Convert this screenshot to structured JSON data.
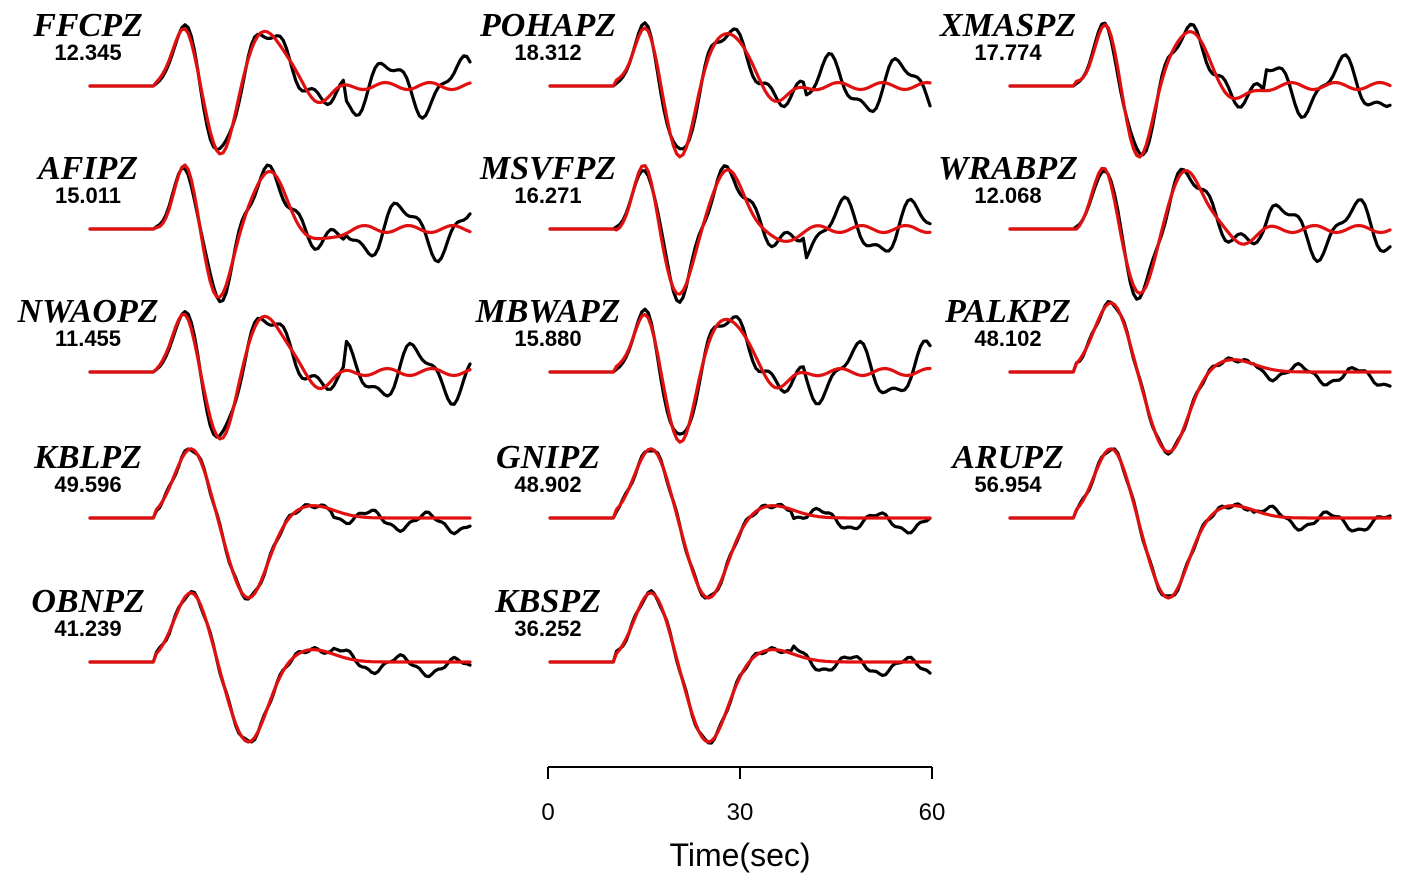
{
  "chart_data": {
    "type": "line",
    "title": "",
    "xlabel": "Time(sec)",
    "ylabel": "",
    "x_ticks": [
      0,
      30,
      60
    ],
    "xlim": [
      0,
      60
    ],
    "legend": "none",
    "colors": {
      "observed": "#000000",
      "synthetic": "#e01010"
    },
    "stations": [
      {
        "name": "FFCPZ",
        "value": "12.345"
      },
      {
        "name": "POHAPZ",
        "value": "18.312"
      },
      {
        "name": "XMASPZ",
        "value": "17.774"
      },
      {
        "name": "AFIPZ",
        "value": "15.011"
      },
      {
        "name": "MSVFPZ",
        "value": "16.271"
      },
      {
        "name": "WRABPZ",
        "value": "12.068"
      },
      {
        "name": "NWAOPZ",
        "value": "11.455"
      },
      {
        "name": "MBWAPZ",
        "value": "15.880"
      },
      {
        "name": "PALKPZ",
        "value": "48.102"
      },
      {
        "name": "KBLPZ",
        "value": "49.596"
      },
      {
        "name": "GNIPZ",
        "value": "48.902"
      },
      {
        "name": "ARUPZ",
        "value": "56.954"
      },
      {
        "name": "OBNPZ",
        "value": "41.239"
      },
      {
        "name": "KBSPZ",
        "value": "36.252"
      }
    ],
    "series_shape_samples": {
      "x": [
        0,
        10,
        11,
        12,
        13,
        14,
        15,
        16,
        17,
        18,
        19,
        20,
        21,
        22,
        23,
        24,
        25,
        26,
        27,
        28,
        29,
        30,
        32,
        34,
        36,
        38,
        40,
        42,
        44,
        46,
        48,
        50,
        52,
        54,
        56,
        58,
        60
      ],
      "FFCPZ_obs": [
        0,
        0,
        0.1,
        0.5,
        0.8,
        0.85,
        0.7,
        0.3,
        -0.3,
        -0.8,
        -1.0,
        -0.85,
        -0.6,
        -0.4,
        -0.2,
        0.0,
        0.1,
        0.3,
        0.5,
        0.65,
        0.75,
        0.7,
        0.3,
        0.1,
        0.15,
        0.05,
        0.12,
        0.0,
        0.05,
        0.1,
        0.0,
        0.1,
        0.3,
        0.6,
        0.75,
        0.45,
        0.2
      ],
      "FFCPZ_syn": [
        0,
        0,
        0.1,
        0.6,
        0.82,
        0.85,
        0.7,
        0.3,
        -0.2,
        -0.7,
        -0.95,
        -0.95,
        -0.8,
        -0.55,
        -0.3,
        -0.1,
        0.05,
        0.15,
        0.2,
        0.22,
        0.25,
        0.3,
        0.2,
        0.0,
        -0.05,
        -0.15,
        -0.05,
        0.0,
        0.05,
        0.05,
        0.03,
        0.03,
        0.02,
        0.0,
        0.0,
        0.0,
        0.0
      ],
      "KBLPZ_obs": [
        0,
        0,
        0,
        0.2,
        0.6,
        0.8,
        0.85,
        0.75,
        0.5,
        0.2,
        -0.1,
        -0.4,
        -0.7,
        -0.9,
        -1.0,
        -0.95,
        -0.75,
        -0.5,
        -0.25,
        -0.05,
        0.05,
        0.1,
        0.08,
        0.05,
        0.1,
        0.18,
        0.05,
        0.0,
        0.02,
        0.0,
        -0.02,
        -0.08,
        -0.12,
        -0.2,
        -0.15,
        -0.1,
        -0.08
      ],
      "KBLPZ_syn": [
        0,
        0,
        0,
        0.2,
        0.6,
        0.85,
        0.9,
        0.8,
        0.55,
        0.2,
        -0.1,
        -0.4,
        -0.7,
        -0.9,
        -1.0,
        -0.95,
        -0.75,
        -0.5,
        -0.25,
        -0.05,
        0.1,
        0.15,
        0.15,
        0.1,
        0.0,
        -0.02,
        0.0,
        0.0,
        0.0,
        0.0,
        0.0,
        0.0,
        0.0,
        0.0,
        0.0,
        0.0,
        0.0
      ]
    }
  }
}
